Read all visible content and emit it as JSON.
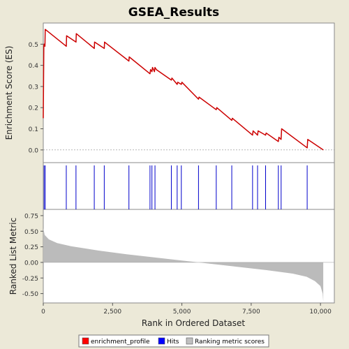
{
  "chart_data": [
    {
      "type": "line",
      "title": "GSEA_Results",
      "ylabel": "Enrichment Score (ES)",
      "xlim": [
        0,
        10500
      ],
      "ylim": [
        -0.06,
        0.6
      ],
      "grid": false,
      "yticks": [
        "0.0",
        "0.1",
        "0.2",
        "0.3",
        "0.4",
        "0.5"
      ],
      "series": [
        {
          "name": "enrichment_profile",
          "color": "#cc0000",
          "x": [
            0,
            20,
            30,
            60,
            70,
            830,
            840,
            1180,
            1190,
            1840,
            1850,
            2200,
            2210,
            3090,
            3100,
            3850,
            3870,
            3920,
            3940,
            4010,
            4030,
            4080,
            4620,
            4640,
            4830,
            4850,
            4980,
            5000,
            5600,
            5620,
            6240,
            6260,
            6800,
            6820,
            7550,
            7570,
            7730,
            7750,
            8020,
            8040,
            8480,
            8500,
            8580,
            8600,
            9520,
            9540,
            10100
          ],
          "y": [
            0.15,
            0.49,
            0.5,
            0.49,
            0.57,
            0.49,
            0.54,
            0.51,
            0.55,
            0.48,
            0.51,
            0.48,
            0.51,
            0.42,
            0.44,
            0.36,
            0.38,
            0.37,
            0.39,
            0.37,
            0.39,
            0.38,
            0.33,
            0.34,
            0.31,
            0.32,
            0.31,
            0.32,
            0.24,
            0.25,
            0.19,
            0.2,
            0.14,
            0.15,
            0.07,
            0.09,
            0.07,
            0.09,
            0.07,
            0.08,
            0.04,
            0.06,
            0.05,
            0.1,
            0.01,
            0.05,
            0.0
          ]
        }
      ]
    },
    {
      "type": "scatter",
      "name": "Hits",
      "color": "#0000cc",
      "hits": [
        30,
        70,
        830,
        1180,
        1840,
        2200,
        3090,
        3850,
        3920,
        4030,
        4620,
        4830,
        4980,
        5600,
        6240,
        6800,
        7550,
        7730,
        8020,
        8480,
        8580,
        9520
      ]
    },
    {
      "type": "area",
      "xlabel": "Rank in Ordered Dataset",
      "ylabel": "Ranked List Metric",
      "xlim": [
        0,
        10500
      ],
      "ylim": [
        -0.65,
        0.85
      ],
      "xticks": [
        "0",
        "2,500",
        "5,000",
        "7,500",
        "10,000"
      ],
      "yticks": [
        "0.75",
        "0.50",
        "0.25",
        "0.00",
        "-0.25",
        "-0.50"
      ],
      "series": [
        {
          "name": "Ranking metric scores",
          "color": "#bbbbbb",
          "x": [
            0,
            50,
            200,
            500,
            1000,
            2000,
            3000,
            4000,
            5000,
            5600,
            6000,
            7000,
            8000,
            9000,
            9500,
            9800,
            10000,
            10080,
            10100
          ],
          "y": [
            0.55,
            0.44,
            0.37,
            0.31,
            0.26,
            0.19,
            0.13,
            0.08,
            0.03,
            0.0,
            -0.02,
            -0.07,
            -0.12,
            -0.18,
            -0.23,
            -0.3,
            -0.38,
            -0.5,
            -0.63
          ]
        }
      ]
    }
  ],
  "legend": {
    "items": [
      {
        "label": "enrichment_profile",
        "color": "#ff0000"
      },
      {
        "label": "Hits",
        "color": "#0000ff"
      },
      {
        "label": "Ranking metric scores",
        "color": "#c0c0c0"
      }
    ]
  }
}
